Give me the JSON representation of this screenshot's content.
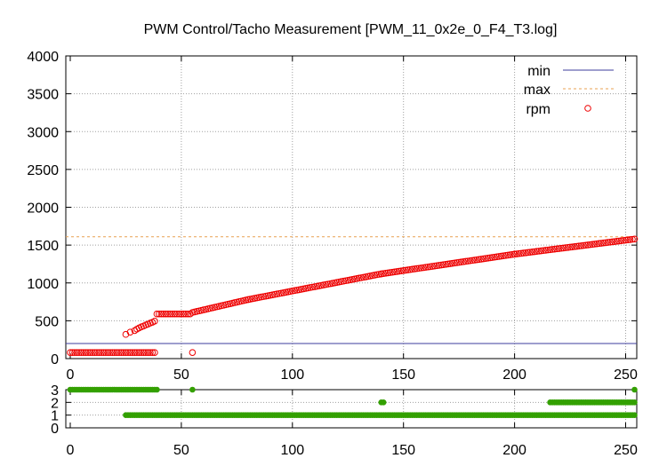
{
  "title": "PWM Control/Tacho Measurement [PWM_11_0x2e_0_F4_T3.log]",
  "colors": {
    "min": "#3d3d9c",
    "max": "#e8a050",
    "rpm": "#ee0000",
    "state": "#33a000",
    "grid": "#a0a0a0",
    "axis": "#000000"
  },
  "chart_data": [
    {
      "type": "scatter",
      "grid": true,
      "legend_placement": "top-right",
      "xlim": [
        -2,
        255
      ],
      "ylim": [
        0,
        4000
      ],
      "xticks": [
        0,
        50,
        100,
        150,
        200,
        250
      ],
      "yticks": [
        0,
        500,
        1000,
        1500,
        2000,
        2500,
        3000,
        3500,
        4000
      ],
      "series": [
        {
          "name": "min",
          "kind": "hline",
          "value": 200
        },
        {
          "name": "max",
          "kind": "hline",
          "value": 1610
        },
        {
          "name": "rpm",
          "kind": "points",
          "segments": [
            {
              "x_from": 0,
              "x_to": 38,
              "y_from": 80,
              "y_to": 80
            },
            {
              "x_from": 39,
              "x_to": 54,
              "y_from": 590,
              "y_to": 590
            },
            {
              "x_from": 55,
              "x_to": 80,
              "y_from": 610,
              "y_to": 780
            },
            {
              "x_from": 80,
              "x_to": 140,
              "y_from": 780,
              "y_to": 1120
            },
            {
              "x_from": 140,
              "x_to": 200,
              "y_from": 1120,
              "y_to": 1380
            },
            {
              "x_from": 200,
              "x_to": 254,
              "y_from": 1380,
              "y_to": 1580
            }
          ],
          "extra_points": [
            [
              25,
              320
            ],
            [
              27,
              350
            ],
            [
              29,
              370
            ],
            [
              30,
              390
            ],
            [
              31,
              405
            ],
            [
              32,
              420
            ],
            [
              33,
              430
            ],
            [
              34,
              445
            ],
            [
              35,
              455
            ],
            [
              36,
              470
            ],
            [
              37,
              480
            ],
            [
              38,
              495
            ],
            [
              55,
              80
            ]
          ]
        }
      ]
    },
    {
      "type": "scatter",
      "grid": true,
      "xlim": [
        -2,
        255
      ],
      "ylim": [
        0,
        3
      ],
      "xticks": [
        0,
        50,
        100,
        150,
        200,
        250
      ],
      "yticks": [
        0,
        1,
        2,
        3
      ],
      "series": [
        {
          "kind": "points",
          "segments": [
            {
              "x_from": 0,
              "x_to": 39,
              "y": 3
            },
            {
              "x_from": 25,
              "x_to": 254,
              "y": 1
            },
            {
              "x_from": 216,
              "x_to": 254,
              "y": 2
            }
          ],
          "extra_points": [
            [
              55,
              3
            ],
            [
              140,
              2
            ],
            [
              141,
              2
            ],
            [
              254,
              3
            ]
          ]
        }
      ]
    }
  ]
}
